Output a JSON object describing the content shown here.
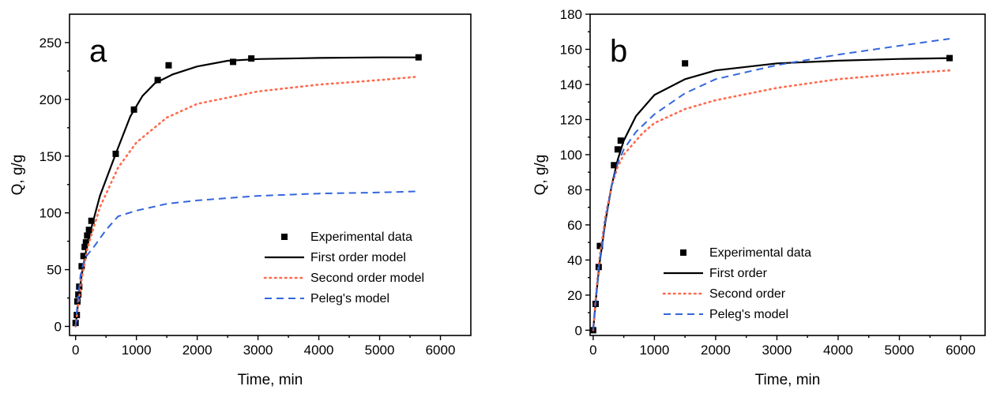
{
  "chart_data": [
    {
      "type": "scatter",
      "panel_label": "a",
      "xlabel": "Time, min",
      "ylabel": "Q, g/g",
      "xlim": [
        -100,
        6500
      ],
      "ylim": [
        -8,
        275
      ],
      "xticks": [
        0,
        1000,
        2000,
        3000,
        4000,
        5000,
        6000
      ],
      "yticks": [
        0,
        50,
        100,
        150,
        200,
        250
      ],
      "legend_position": "bottom-right",
      "series": [
        {
          "name": "Experimental data",
          "kind": "markers",
          "color": "#000000",
          "points": [
            [
              0,
              3
            ],
            [
              20,
              10
            ],
            [
              30,
              22
            ],
            [
              45,
              28
            ],
            [
              60,
              35
            ],
            [
              100,
              53
            ],
            [
              130,
              62
            ],
            [
              150,
              70
            ],
            [
              170,
              74
            ],
            [
              190,
              80
            ],
            [
              220,
              85
            ],
            [
              260,
              93
            ],
            [
              660,
              152
            ],
            [
              960,
              191
            ],
            [
              1350,
              217
            ],
            [
              1530,
              230
            ],
            [
              2590,
              233
            ],
            [
              2890,
              236
            ],
            [
              5640,
              237
            ]
          ]
        },
        {
          "name": "First order model",
          "kind": "solid",
          "color": "#000000",
          "points": [
            [
              0,
              0
            ],
            [
              50,
              25
            ],
            [
              100,
              45
            ],
            [
              200,
              75
            ],
            [
              400,
              115
            ],
            [
              660,
              152
            ],
            [
              900,
              185
            ],
            [
              1100,
              203
            ],
            [
              1300,
              214
            ],
            [
              1600,
              222
            ],
            [
              2000,
              229
            ],
            [
              2500,
              234
            ],
            [
              3000,
              235.5
            ],
            [
              4000,
              236.5
            ],
            [
              5000,
              237
            ],
            [
              5640,
              237
            ]
          ]
        },
        {
          "name": "Second order model",
          "kind": "dotted",
          "color": "#FF6A4D",
          "points": [
            [
              0,
              0
            ],
            [
              50,
              22
            ],
            [
              100,
              42
            ],
            [
              200,
              70
            ],
            [
              400,
              105
            ],
            [
              700,
              140
            ],
            [
              1000,
              162
            ],
            [
              1500,
              184
            ],
            [
              2000,
              196
            ],
            [
              3000,
              207
            ],
            [
              4000,
              213
            ],
            [
              5000,
              217
            ],
            [
              5640,
              220
            ]
          ]
        },
        {
          "name": "Peleg's model",
          "kind": "dashed",
          "color": "#3366DD",
          "points": [
            [
              0,
              0
            ],
            [
              30,
              20
            ],
            [
              80,
              45
            ],
            [
              150,
              60
            ],
            [
              300,
              70
            ],
            [
              500,
              85
            ],
            [
              700,
              97
            ],
            [
              1000,
              102
            ],
            [
              1500,
              108
            ],
            [
              2000,
              111
            ],
            [
              3000,
              115
            ],
            [
              4000,
              117
            ],
            [
              5000,
              118
            ],
            [
              5640,
              119
            ]
          ]
        }
      ]
    },
    {
      "type": "scatter",
      "panel_label": "b",
      "xlabel": "Time, min",
      "ylabel": "Q, g/g",
      "xlim": [
        -50,
        6400
      ],
      "ylim": [
        -3,
        180
      ],
      "xticks": [
        0,
        1000,
        2000,
        3000,
        4000,
        5000,
        6000
      ],
      "yticks": [
        0,
        20,
        40,
        60,
        80,
        100,
        120,
        140,
        160,
        180
      ],
      "legend_position": "bottom-right",
      "series": [
        {
          "name": "Experimental data",
          "kind": "markers",
          "color": "#000000",
          "points": [
            [
              0,
              0
            ],
            [
              40,
              15
            ],
            [
              90,
              36
            ],
            [
              110,
              48
            ],
            [
              340,
              94
            ],
            [
              400,
              103
            ],
            [
              450,
              108
            ],
            [
              1500,
              152
            ],
            [
              5820,
              155
            ]
          ]
        },
        {
          "name": "First order",
          "kind": "solid",
          "color": "#000000",
          "points": [
            [
              0,
              0
            ],
            [
              50,
              20
            ],
            [
              100,
              37
            ],
            [
              200,
              62
            ],
            [
              300,
              82
            ],
            [
              400,
              97
            ],
            [
              500,
              108
            ],
            [
              700,
              122
            ],
            [
              1000,
              134
            ],
            [
              1500,
              143
            ],
            [
              2000,
              148
            ],
            [
              3000,
              152
            ],
            [
              4000,
              153.5
            ],
            [
              5000,
              154.5
            ],
            [
              5820,
              155
            ]
          ]
        },
        {
          "name": "Second order",
          "kind": "dotted",
          "color": "#FF6A4D",
          "points": [
            [
              0,
              0
            ],
            [
              50,
              22
            ],
            [
              100,
              40
            ],
            [
              200,
              65
            ],
            [
              300,
              82
            ],
            [
              400,
              93
            ],
            [
              500,
              100
            ],
            [
              800,
              112
            ],
            [
              1000,
              118
            ],
            [
              1500,
              126
            ],
            [
              2000,
              131
            ],
            [
              3000,
              138
            ],
            [
              4000,
              143
            ],
            [
              5000,
              146
            ],
            [
              5820,
              148
            ]
          ]
        },
        {
          "name": "Peleg's model",
          "kind": "dashed",
          "color": "#3366DD",
          "points": [
            [
              0,
              0
            ],
            [
              50,
              20
            ],
            [
              100,
              38
            ],
            [
              200,
              63
            ],
            [
              300,
              82
            ],
            [
              400,
              95
            ],
            [
              500,
              103
            ],
            [
              700,
              113
            ],
            [
              1000,
              123
            ],
            [
              1500,
              135
            ],
            [
              2000,
              143
            ],
            [
              3000,
              151
            ],
            [
              4000,
              157
            ],
            [
              5000,
              162
            ],
            [
              5820,
              166
            ]
          ]
        }
      ]
    }
  ]
}
